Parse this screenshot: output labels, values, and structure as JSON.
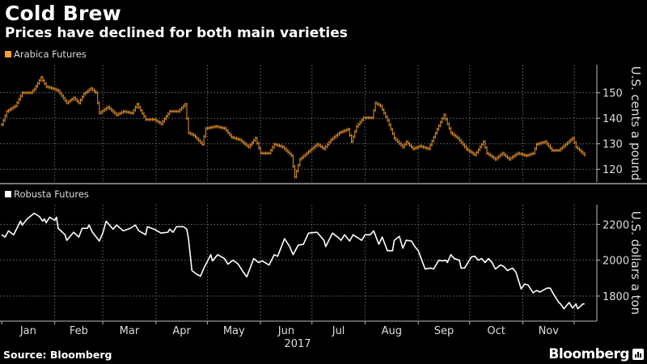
{
  "header": {
    "title": "Cold Brew",
    "subtitle": "Prices have declined for both main varieties"
  },
  "footer": {
    "source": "Source: Bloomberg",
    "brand": "Bloomberg"
  },
  "colors": {
    "arabica": "#e8952e",
    "robusta": "#ffffff",
    "grid": "#555555",
    "axis": "#bbbbbb"
  },
  "chart_data": [
    {
      "type": "line",
      "style": "ohlc-bars",
      "title": "Arabica Futures",
      "legend": "Arabica Futures",
      "ylabel": "U.S. cents a pound",
      "yticks": [
        120,
        130,
        140,
        150
      ],
      "ylim": [
        115,
        161
      ],
      "xlim": [
        0,
        347
      ],
      "grid": true,
      "points": [
        [
          0,
          137.5
        ],
        [
          3,
          142.7
        ],
        [
          8,
          144.8
        ],
        [
          12,
          150
        ],
        [
          17,
          150
        ],
        [
          19,
          151.4
        ],
        [
          23,
          156
        ],
        [
          26,
          152.4
        ],
        [
          31,
          151.4
        ],
        [
          33,
          150.7
        ],
        [
          38,
          146
        ],
        [
          42,
          148
        ],
        [
          45,
          146
        ],
        [
          48,
          149.6
        ],
        [
          52,
          151.7
        ],
        [
          55,
          150
        ],
        [
          57,
          142
        ],
        [
          62,
          144.4
        ],
        [
          67,
          141.3
        ],
        [
          71,
          142.7
        ],
        [
          76,
          142
        ],
        [
          79,
          145.5
        ],
        [
          84,
          139.5
        ],
        [
          89,
          139.5
        ],
        [
          93,
          137.8
        ],
        [
          98,
          142.7
        ],
        [
          103,
          142.7
        ],
        [
          107,
          145.5
        ],
        [
          109,
          134.3
        ],
        [
          112,
          133.3
        ],
        [
          117,
          129.8
        ],
        [
          119,
          136
        ],
        [
          125,
          136.8
        ],
        [
          130,
          136
        ],
        [
          134,
          132.6
        ],
        [
          139,
          131.5
        ],
        [
          144,
          128.7
        ],
        [
          148,
          132.2
        ],
        [
          151,
          126.3
        ],
        [
          156,
          126.3
        ],
        [
          159,
          129.8
        ],
        [
          164,
          128.7
        ],
        [
          169,
          125.3
        ],
        [
          171,
          117
        ],
        [
          174,
          123.9
        ],
        [
          178,
          126.3
        ],
        [
          184,
          129.8
        ],
        [
          188,
          128
        ],
        [
          192,
          131.5
        ],
        [
          197,
          134.3
        ],
        [
          202,
          135.7
        ],
        [
          204,
          130.8
        ],
        [
          207,
          136.8
        ],
        [
          211,
          140.2
        ],
        [
          216,
          140.2
        ],
        [
          218,
          146
        ],
        [
          221,
          144.8
        ],
        [
          225,
          139.2
        ],
        [
          229,
          132.2
        ],
        [
          234,
          128.7
        ],
        [
          236,
          130.8
        ],
        [
          240,
          128
        ],
        [
          244,
          129.1
        ],
        [
          249,
          128
        ],
        [
          254,
          135.7
        ],
        [
          258,
          141.3
        ],
        [
          262,
          134.3
        ],
        [
          266,
          132.2
        ],
        [
          271,
          128
        ],
        [
          276,
          125.6
        ],
        [
          281,
          130.8
        ],
        [
          283,
          126.3
        ],
        [
          288,
          123.9
        ],
        [
          292,
          126.3
        ],
        [
          296,
          123.9
        ],
        [
          301,
          126.3
        ],
        [
          306,
          125.3
        ],
        [
          310,
          126.3
        ],
        [
          312,
          129.8
        ],
        [
          317,
          130.8
        ],
        [
          321,
          127.4
        ],
        [
          325,
          127.4
        ],
        [
          329,
          129.8
        ],
        [
          333,
          132.2
        ],
        [
          335,
          128.7
        ],
        [
          340,
          125.6
        ]
      ]
    },
    {
      "type": "line",
      "title": "Robusta Futures",
      "legend": "Robusta Futures",
      "ylabel": "U.S. dollars a ton",
      "yticks": [
        1800,
        2000,
        2200
      ],
      "ylim": [
        1660,
        2310
      ],
      "xlim": [
        0,
        347
      ],
      "grid": true,
      "points": [
        [
          0,
          2142
        ],
        [
          2,
          2129
        ],
        [
          4,
          2164
        ],
        [
          7,
          2142
        ],
        [
          11,
          2218
        ],
        [
          12,
          2196
        ],
        [
          15,
          2231
        ],
        [
          19,
          2262
        ],
        [
          22,
          2244
        ],
        [
          24,
          2218
        ],
        [
          25,
          2231
        ],
        [
          26,
          2209
        ],
        [
          28,
          2240
        ],
        [
          31,
          2222
        ],
        [
          32,
          2240
        ],
        [
          33,
          2178
        ],
        [
          37,
          2142
        ],
        [
          38,
          2111
        ],
        [
          42,
          2156
        ],
        [
          45,
          2129
        ],
        [
          47,
          2178
        ],
        [
          50,
          2178
        ],
        [
          51,
          2196
        ],
        [
          53,
          2156
        ],
        [
          57,
          2107
        ],
        [
          59,
          2151
        ],
        [
          61,
          2218
        ],
        [
          65,
          2173
        ],
        [
          67,
          2196
        ],
        [
          71,
          2164
        ],
        [
          75,
          2178
        ],
        [
          78,
          2196
        ],
        [
          80,
          2164
        ],
        [
          84,
          2142
        ],
        [
          85,
          2187
        ],
        [
          89,
          2173
        ],
        [
          93,
          2151
        ],
        [
          97,
          2156
        ],
        [
          98,
          2173
        ],
        [
          100,
          2156
        ],
        [
          102,
          2187
        ],
        [
          106,
          2187
        ],
        [
          108,
          2173
        ],
        [
          109,
          2120
        ],
        [
          111,
          1942
        ],
        [
          114,
          1920
        ],
        [
          116,
          1911
        ],
        [
          118,
          1956
        ],
        [
          122,
          2031
        ],
        [
          123,
          1996
        ],
        [
          126,
          2031
        ],
        [
          130,
          2009
        ],
        [
          132,
          1978
        ],
        [
          135,
          2000
        ],
        [
          138,
          1978
        ],
        [
          141,
          1933
        ],
        [
          143,
          1907
        ],
        [
          147,
          2009
        ],
        [
          150,
          1987
        ],
        [
          152,
          1996
        ],
        [
          156,
          1973
        ],
        [
          159,
          2031
        ],
        [
          161,
          2022
        ],
        [
          165,
          2120
        ],
        [
          168,
          2076
        ],
        [
          170,
          2031
        ],
        [
          173,
          2084
        ],
        [
          176,
          2089
        ],
        [
          179,
          2151
        ],
        [
          184,
          2156
        ],
        [
          188,
          2111
        ],
        [
          189,
          2076
        ],
        [
          193,
          2151
        ],
        [
          196,
          2129
        ],
        [
          198,
          2111
        ],
        [
          200,
          2142
        ],
        [
          203,
          2107
        ],
        [
          205,
          2142
        ],
        [
          210,
          2111
        ],
        [
          212,
          2142
        ],
        [
          215,
          2142
        ],
        [
          217,
          2164
        ],
        [
          220,
          2089
        ],
        [
          222,
          2129
        ],
        [
          225,
          2053
        ],
        [
          228,
          2053
        ],
        [
          229,
          2111
        ],
        [
          232,
          2133
        ],
        [
          234,
          2067
        ],
        [
          236,
          2111
        ],
        [
          239,
          2107
        ],
        [
          241,
          2076
        ],
        [
          243,
          2053
        ],
        [
          247,
          1951
        ],
        [
          250,
          1956
        ],
        [
          252,
          1951
        ],
        [
          255,
          2000
        ],
        [
          257,
          1996
        ],
        [
          259,
          2000
        ],
        [
          260,
          1987
        ],
        [
          262,
          2031
        ],
        [
          264,
          2009
        ],
        [
          267,
          2000
        ],
        [
          268,
          1956
        ],
        [
          270,
          1956
        ],
        [
          274,
          2018
        ],
        [
          276,
          2022
        ],
        [
          278,
          2000
        ],
        [
          280,
          2009
        ],
        [
          282,
          1987
        ],
        [
          284,
          2009
        ],
        [
          286,
          1987
        ],
        [
          288,
          1951
        ],
        [
          291,
          1973
        ],
        [
          293,
          1964
        ],
        [
          295,
          1942
        ],
        [
          298,
          1956
        ],
        [
          300,
          1933
        ],
        [
          303,
          1840
        ],
        [
          305,
          1867
        ],
        [
          307,
          1862
        ],
        [
          310,
          1818
        ],
        [
          312,
          1831
        ],
        [
          314,
          1822
        ],
        [
          318,
          1844
        ],
        [
          320,
          1844
        ],
        [
          322,
          1809
        ],
        [
          325,
          1764
        ],
        [
          326,
          1756
        ],
        [
          328,
          1729
        ],
        [
          331,
          1764
        ],
        [
          333,
          1733
        ],
        [
          335,
          1756
        ],
        [
          336,
          1729
        ],
        [
          339,
          1756
        ],
        [
          340,
          1756
        ]
      ]
    }
  ],
  "x_axis": {
    "month_labels": [
      "Jan",
      "Feb",
      "Mar",
      "Apr",
      "May",
      "Jun",
      "Jul",
      "Aug",
      "Sep",
      "Oct",
      "Nov"
    ],
    "month_starts": [
      0,
      31,
      59,
      90,
      120,
      151,
      181,
      212,
      243,
      273,
      304,
      334
    ],
    "year_label": "2017"
  }
}
